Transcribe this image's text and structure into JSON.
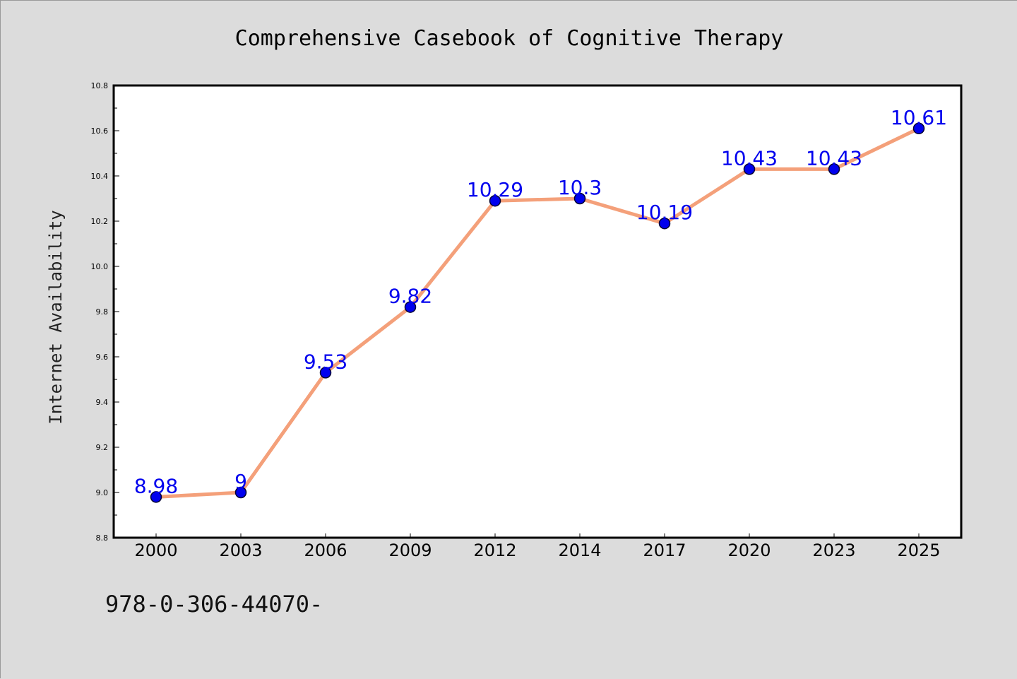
{
  "chart_data": {
    "type": "line",
    "title": "Comprehensive Casebook of Cognitive Therapy",
    "xlabel": "",
    "ylabel": "Internet Availability",
    "categories": [
      "2000",
      "2003",
      "2006",
      "2009",
      "2012",
      "2014",
      "2017",
      "2020",
      "2023",
      "2025"
    ],
    "series": [
      {
        "values": [
          8.98,
          9.0,
          9.53,
          9.82,
          10.29,
          10.3,
          10.19,
          10.43,
          10.43,
          10.61
        ],
        "data_labels": [
          "8.98",
          "9",
          "9.53",
          "9.82",
          "10.29",
          "10.3",
          "10.19",
          "10.43",
          "10.43",
          "10.61"
        ]
      }
    ],
    "ylim": [
      8.8,
      10.8
    ],
    "y_ticks": [
      "8.8",
      "9.0",
      "9.2",
      "9.4",
      "9.6",
      "9.8",
      "10.0",
      "10.2",
      "10.4",
      "10.6",
      "10.8"
    ],
    "grid": false,
    "legend": "none",
    "colors": {
      "line": "#f4a07a",
      "marker_fill": "#0000ee",
      "marker_edge": "#000033",
      "data_label": "#0000ee",
      "plot_background": "#ffffff",
      "figure_background": "#dcdcdc"
    }
  },
  "footer": {
    "isbn": "978-0-306-44070-"
  }
}
